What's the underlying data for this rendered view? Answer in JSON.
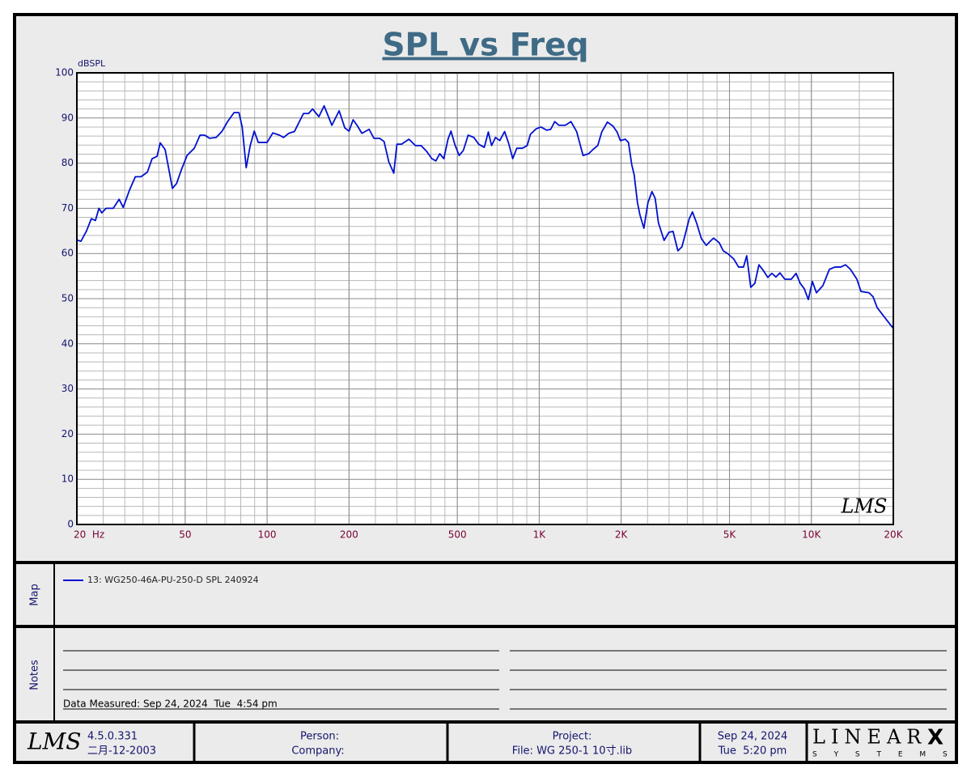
{
  "chart_data": {
    "type": "line",
    "title": "SPL vs Freq",
    "y_label": "dBSPL",
    "xscale": "log",
    "grid": true,
    "minor_grid": true,
    "xlim": [
      20,
      20000
    ],
    "ylim": [
      0,
      100
    ],
    "xticks": [
      {
        "value": 20,
        "label": "20  Hz"
      },
      50,
      100,
      200,
      500,
      {
        "value": 1000,
        "label": "1K"
      },
      {
        "value": 2000,
        "label": "2K"
      },
      {
        "value": 5000,
        "label": "5K"
      },
      {
        "value": 10000,
        "label": "10K"
      },
      {
        "value": 20000,
        "label": "20K"
      }
    ],
    "yticks": [
      0,
      10,
      20,
      30,
      40,
      50,
      60,
      70,
      80,
      90,
      100
    ],
    "watermark": "LMS",
    "x": [
      20,
      20.7,
      21.7,
      22.6,
      23.4,
      24.1,
      24.7,
      25.6,
      27.2,
      28.6,
      29.6,
      31.2,
      32.8,
      34.4,
      36.3,
      37.8,
      39.4,
      40.5,
      42.2,
      44.9,
      46.5,
      48.4,
      50.8,
      54,
      56.7,
      59,
      61.5,
      65,
      68.2,
      71.6,
      75.6,
      78.8,
      81,
      83.8,
      86.7,
      89.7,
      92.8,
      100,
      105,
      111,
      115,
      120,
      126,
      136,
      142,
      147,
      155,
      162,
      173,
      184,
      193,
      200,
      207,
      214,
      223,
      237,
      247,
      259,
      269,
      280,
      292,
      300,
      312,
      332,
      351,
      368,
      386,
      403,
      417,
      431,
      446,
      462,
      474,
      491,
      508,
      526,
      548,
      575,
      599,
      628,
      650,
      668,
      691,
      716,
      746,
      772,
      799,
      827,
      867,
      903,
      928,
      974,
      1015,
      1065,
      1102,
      1140,
      1180,
      1247,
      1308,
      1372,
      1449,
      1520,
      1574,
      1640,
      1697,
      1780,
      1867,
      1932,
      1986,
      2070,
      2127,
      2187,
      2233,
      2295,
      2343,
      2424,
      2509,
      2596,
      2667,
      2741,
      2876,
      2997,
      3102,
      3232,
      3345,
      3438,
      3557,
      3656,
      3784,
      3942,
      4108,
      4281,
      4370,
      4584,
      4743,
      4943,
      5184,
      5400,
      5630,
      5786,
      5988,
      6198,
      6415,
      6682,
      6915,
      7157,
      7406,
      7665,
      7985,
      8433,
      8788,
      9096,
      9414,
      9742,
      10085,
      10435,
      11024,
      11644,
      12212,
      12810,
      13350,
      13914,
      14696,
      15209,
      16290,
      16860,
      17450,
      18180,
      19070,
      20000
    ],
    "series": [
      {
        "name": "13: WG250-46A-PU-250-D SPL 240924",
        "color": "#0010d0",
        "values": [
          63,
          62.7,
          65,
          67.7,
          67.3,
          70,
          69,
          70,
          70,
          72,
          70.2,
          74,
          77,
          77,
          78,
          81,
          81.5,
          84.5,
          83,
          74.4,
          75.5,
          78.5,
          81.7,
          83.3,
          86.2,
          86.2,
          85.5,
          85.7,
          87,
          89.2,
          91.2,
          91.2,
          88,
          79,
          83.9,
          87.1,
          84.6,
          84.6,
          86.7,
          86.2,
          85.7,
          86.6,
          87,
          91,
          91,
          92,
          90.3,
          92.7,
          88.4,
          91.6,
          87.8,
          87.1,
          89.6,
          88.4,
          86.6,
          87.5,
          85.5,
          85.5,
          84.8,
          80.3,
          77.8,
          84.2,
          84.2,
          85.3,
          83.9,
          83.9,
          82.6,
          81,
          80.5,
          82.1,
          81,
          85.3,
          87.1,
          83.9,
          81.7,
          82.8,
          86.2,
          85.7,
          84.2,
          83.5,
          86.9,
          83.9,
          85.7,
          85,
          87,
          84.4,
          81,
          83.3,
          83.3,
          83.9,
          86.4,
          87.6,
          88,
          87.3,
          87.5,
          89.2,
          88.4,
          88.4,
          89.2,
          87,
          81.7,
          82.1,
          83,
          83.9,
          86.9,
          89.1,
          88.2,
          86.9,
          85,
          85.3,
          84.6,
          79.7,
          77.4,
          71.3,
          68.6,
          65.6,
          71.3,
          73.7,
          72.2,
          66.8,
          62.9,
          64.7,
          64.9,
          60.6,
          61.5,
          64.2,
          67.7,
          69.2,
          66.8,
          63.3,
          61.8,
          62.9,
          63.4,
          62.4,
          60.6,
          59.9,
          58.8,
          57,
          57,
          59.5,
          52.5,
          53.4,
          57.5,
          56.1,
          54.7,
          55.6,
          54.8,
          55.7,
          54.3,
          54.3,
          55.6,
          53.4,
          52.2,
          49.8,
          53.8,
          51.3,
          52.9,
          56.5,
          57,
          57,
          57.5,
          56.5,
          54.3,
          51.6,
          51.3,
          50.4,
          48,
          46.6,
          45,
          43.4
        ]
      }
    ]
  },
  "map": {
    "label": "Map"
  },
  "notes": {
    "label": "Notes",
    "text": "Data Measured: Sep 24, 2024  Tue  4:54 pm"
  },
  "footer": {
    "logo": "LMS",
    "version": "4.5.0.331",
    "build_date": "二月-12-2003",
    "person": "Person:",
    "company": "Company:",
    "project": "Project:",
    "file": "File: WG 250-1 10寸.lib",
    "date": "Sep 24, 2024",
    "time": "Tue  5:20 pm",
    "brand": "LINEAR",
    "brand_x": "X",
    "brand_sub": "S Y S T E M S"
  }
}
